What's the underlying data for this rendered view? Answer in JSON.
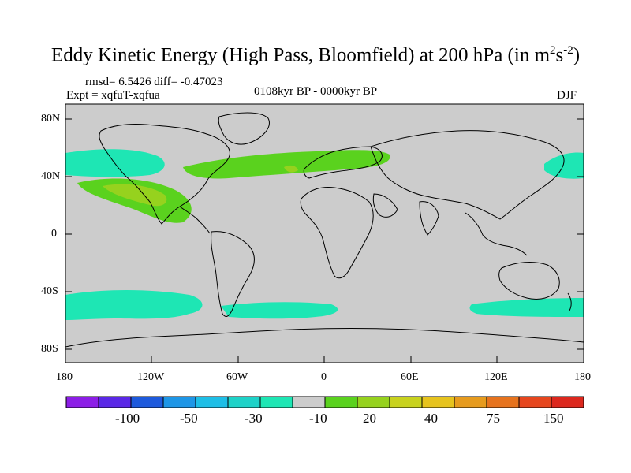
{
  "figure": {
    "title_main": "Eddy Kinetic Energy (High Pass, Bloomfield) at 200 hPa (in m",
    "title_sup1": "2",
    "title_mid": "s",
    "title_sup2": "-2",
    "title_end": ")",
    "stats": "rmsd= 6.5426 diff= -0.47023",
    "experiment": "Expt = xqfuT-xqfua",
    "period": "0108kyr BP - 0000kyr BP",
    "season": "DJF"
  },
  "axes": {
    "y_ticks": [
      "80N",
      "40N",
      "0",
      "40S",
      "80S"
    ],
    "x_ticks": [
      "180",
      "120W",
      "60W",
      "0",
      "60E",
      "120E",
      "180"
    ]
  },
  "colorbar": {
    "colors": [
      "#8c1ee6",
      "#5a28e6",
      "#1e5adc",
      "#1e96e6",
      "#1ebee6",
      "#1ed2c8",
      "#1ee6b4",
      "#cccccc",
      "#5ad21e",
      "#96d21e",
      "#c8d21e",
      "#e6c31e",
      "#e69b1e",
      "#e6731e",
      "#e6461e",
      "#dc281e"
    ],
    "labels": [
      "-100",
      "-50",
      "-30",
      "-10",
      "20",
      "40",
      "75",
      "150"
    ]
  },
  "colors": {
    "land_ocean_gray": "#cccccc",
    "teal_negative": "#1ee6b4",
    "green_positive": "#5ad21e",
    "yellowgreen_positive": "#96d21e"
  }
}
